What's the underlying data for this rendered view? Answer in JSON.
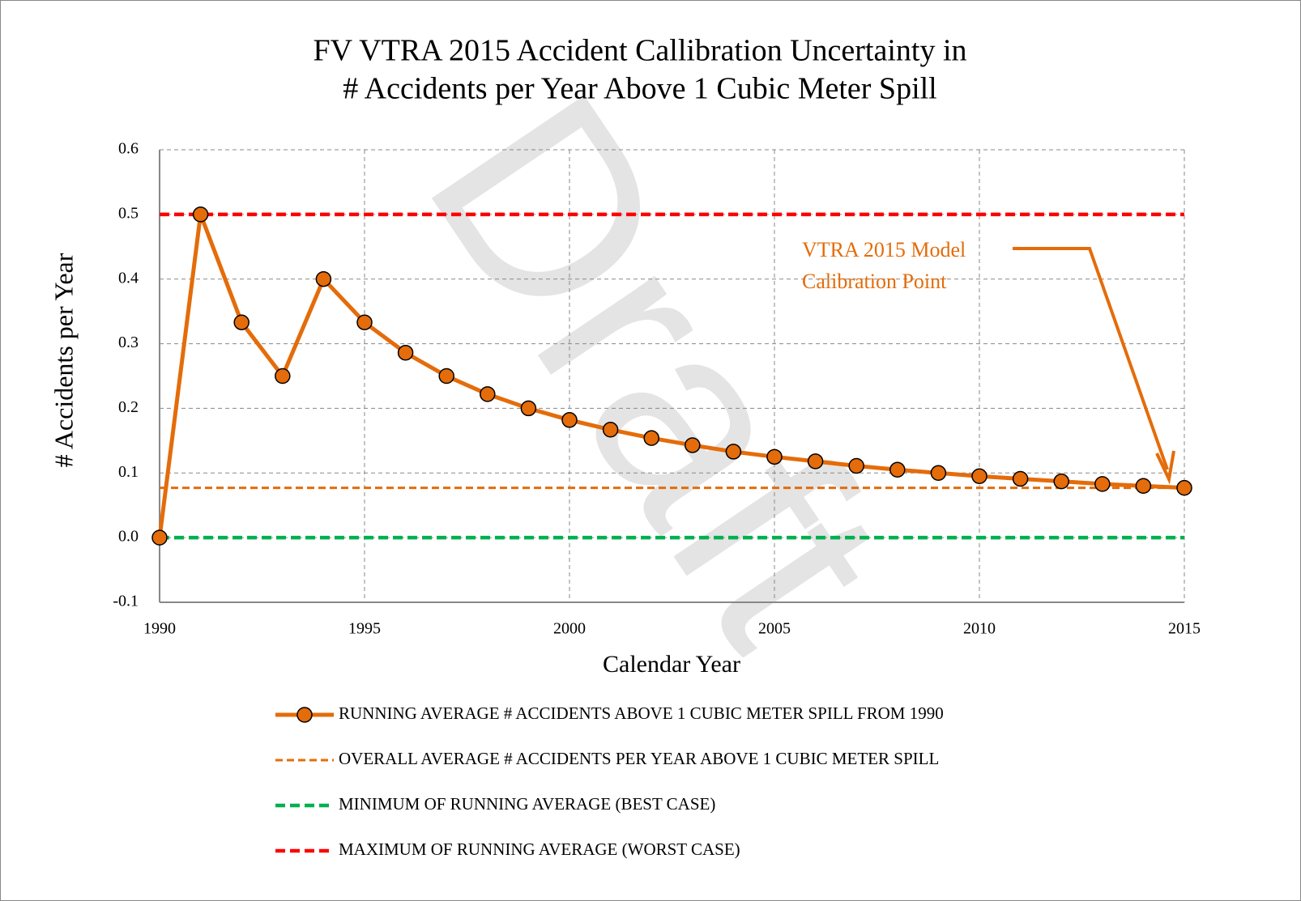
{
  "chart_data": {
    "type": "line",
    "title": [
      "FV VTRA 2015 Accident Callibration Uncertainty in",
      "# Accidents per Year Above 1 Cubic Meter Spill"
    ],
    "x_label": "Calendar Year",
    "y_label": "# Accidents per Year",
    "watermark": "Draft",
    "annotation": [
      "VTRA 2015 Model",
      "Calibration Point"
    ],
    "annotation_color": "#e46c0a",
    "x": [
      1990,
      1991,
      1992,
      1993,
      1994,
      1995,
      1996,
      1997,
      1998,
      1999,
      2000,
      2001,
      2002,
      2003,
      2004,
      2005,
      2006,
      2007,
      2008,
      2009,
      2010,
      2011,
      2012,
      2013,
      2014,
      2015
    ],
    "xlim": [
      1990,
      2015
    ],
    "xticks": [
      1990,
      1995,
      2000,
      2005,
      2010,
      2015
    ],
    "ylim": [
      -0.1,
      0.6
    ],
    "yticks": [
      -0.1,
      {
        "value": 0,
        "label": "0.0"
      },
      0.1,
      0.2,
      0.3,
      0.4,
      0.5,
      0.6
    ],
    "grid": true,
    "legend": "bottom",
    "series": [
      {
        "name": "RUNNING AVERAGE # ACCIDENTS ABOVE 1 CUBIC METER SPILL FROM 1990",
        "color": "#e46c0a",
        "dash": false,
        "markers": true,
        "values": [
          0,
          0.5,
          0.333,
          0.25,
          0.4,
          0.333,
          0.286,
          0.25,
          0.222,
          0.2,
          0.182,
          0.167,
          0.154,
          0.143,
          0.133,
          0.125,
          0.118,
          0.111,
          0.105,
          0.1,
          0.095,
          0.091,
          0.087,
          0.083,
          0.08,
          0.077
        ]
      },
      {
        "name": "OVERALL AVERAGE # ACCIDENTS PER YEAR ABOVE 1 CUBIC METER SPILL",
        "color": "#e46c0a",
        "dash": true,
        "markers": false,
        "values": [
          0.077,
          0.077,
          0.077,
          0.077,
          0.077,
          0.077,
          0.077,
          0.077,
          0.077,
          0.077,
          0.077,
          0.077,
          0.077,
          0.077,
          0.077,
          0.077,
          0.077,
          0.077,
          0.077,
          0.077,
          0.077,
          0.077,
          0.077,
          0.077,
          0.077,
          0.077
        ]
      },
      {
        "name": "MINIMUM OF RUNNING AVERAGE (BEST CASE)",
        "color": "#00b050",
        "dash": true,
        "markers": false,
        "values": [
          0,
          0,
          0,
          0,
          0,
          0,
          0,
          0,
          0,
          0,
          0,
          0,
          0,
          0,
          0,
          0,
          0,
          0,
          0,
          0,
          0,
          0,
          0,
          0,
          0,
          0
        ]
      },
      {
        "name": "MAXIMUM OF RUNNING AVERAGE (WORST CASE)",
        "color": "#ff0000",
        "dash": true,
        "markers": false,
        "values": [
          0.5,
          0.5,
          0.5,
          0.5,
          0.5,
          0.5,
          0.5,
          0.5,
          0.5,
          0.5,
          0.5,
          0.5,
          0.5,
          0.5,
          0.5,
          0.5,
          0.5,
          0.5,
          0.5,
          0.5,
          0.5,
          0.5,
          0.5,
          0.5,
          0.5,
          0.5
        ]
      }
    ]
  }
}
